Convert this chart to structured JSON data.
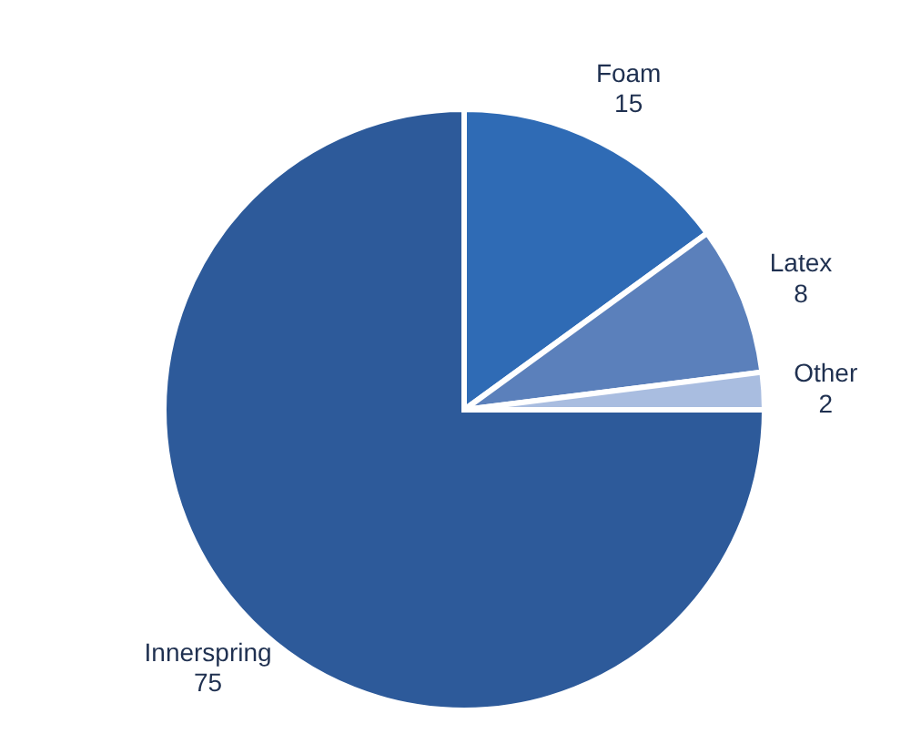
{
  "chart_data": {
    "type": "pie",
    "categories": [
      "Foam",
      "Latex",
      "Other",
      "Innerspring"
    ],
    "values": [
      15,
      8,
      2,
      75
    ],
    "colors": [
      "#2f6bb5",
      "#5b80bb",
      "#a9bde0",
      "#2d5a9a"
    ],
    "data_labels": true
  }
}
